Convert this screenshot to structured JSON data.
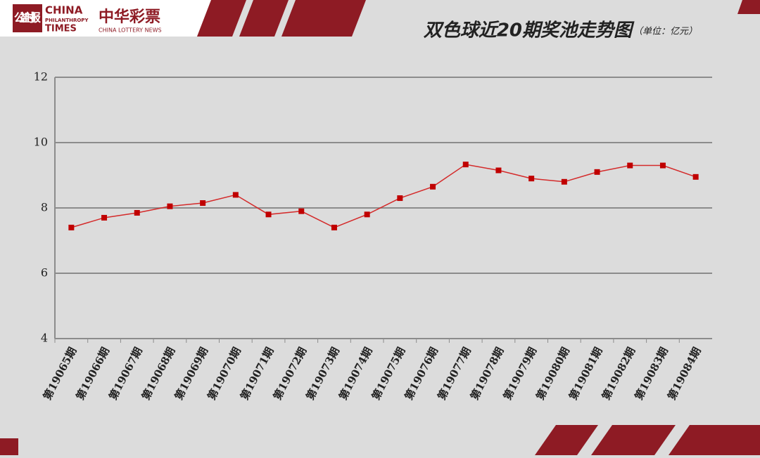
{
  "header": {
    "logo_cn": "公益时报",
    "logo_en_1": "CHINA",
    "logo_en_2": "PHILANTHROPY",
    "logo_en_3": "TIMES",
    "brand_cn": "中华彩票",
    "brand_en": "CHINA LOTTERY NEWS"
  },
  "chart_data": {
    "type": "line",
    "title": "双色球近20期奖池走势图",
    "subtitle": "（单位：亿元）",
    "categories": [
      "第19065期",
      "第19066期",
      "第19067期",
      "第19068期",
      "第19069期",
      "第19070期",
      "第19071期",
      "第19072期",
      "第19073期",
      "第19074期",
      "第19075期",
      "第19076期",
      "第19077期",
      "第19078期",
      "第19079期",
      "第19080期",
      "第19081期",
      "第19082期",
      "第19083期",
      "第19084期"
    ],
    "series": [
      {
        "name": "奖池",
        "color": "#d42a2a",
        "values": [
          7.4,
          7.7,
          7.85,
          8.05,
          8.15,
          8.4,
          7.8,
          7.9,
          7.4,
          7.8,
          8.3,
          8.65,
          9.33,
          9.15,
          8.9,
          8.8,
          9.1,
          9.3,
          9.3,
          8.95
        ]
      }
    ],
    "ylim": [
      4,
      12
    ],
    "yticks": [
      4,
      6,
      8,
      10,
      12
    ],
    "grid": true
  }
}
